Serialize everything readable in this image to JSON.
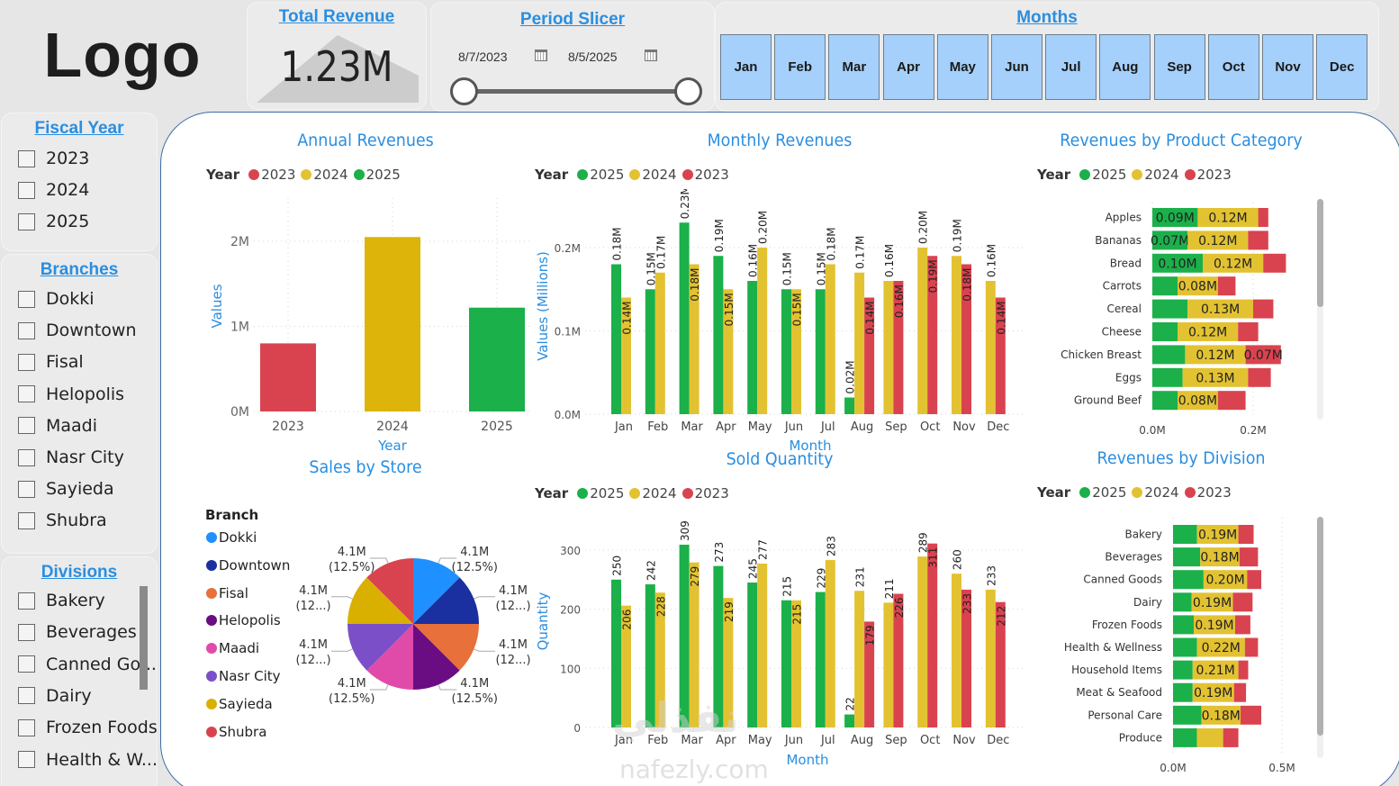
{
  "logo": {
    "text": "Logo"
  },
  "kpi": {
    "title": "Total Revenue",
    "value": "1.23M"
  },
  "period_slicer": {
    "title": "Period Slicer",
    "start_date": "8/7/2023",
    "end_date": "8/5/2025",
    "start_icon": "calendar-icon",
    "end_icon": "calendar-icon"
  },
  "months_slicer": {
    "title": "Months",
    "items": [
      "Jan",
      "Feb",
      "Mar",
      "Apr",
      "May",
      "Jun",
      "Jul",
      "Aug",
      "Sep",
      "Oct",
      "Nov",
      "Dec"
    ]
  },
  "fiscal_year_slicer": {
    "title": "Fiscal Year",
    "items": [
      "2023",
      "2024",
      "2025"
    ]
  },
  "branches_slicer": {
    "title": "Branches",
    "items": [
      "Dokki",
      "Downtown",
      "Fisal",
      "Helopolis",
      "Maadi",
      "Nasr City",
      "Sayieda",
      "Shubra"
    ]
  },
  "divisions_slicer": {
    "title": "Divisions",
    "items": [
      "Bakery",
      "Beverages",
      "Canned Go...",
      "Dairy",
      "Frozen Foods",
      "Health & W..."
    ]
  },
  "colors": {
    "y2023": "#d9434f",
    "y2024": "#dcb40a",
    "y2024_light": "#e3c232",
    "y2025": "#1bb04a",
    "title_blue": "#2a8ee0",
    "month_button": "#a5d0fb",
    "panel_border": "#3c6ea8"
  },
  "legends": {
    "year_label": "Year",
    "annual": [
      "2023",
      "2024",
      "2025"
    ],
    "standard": [
      "2025",
      "2024",
      "2023"
    ]
  },
  "watermark": {
    "latin": "nafezly.com",
    "arabic": "نفذلي"
  },
  "chart_data": [
    {
      "id": "annual_revenues",
      "type": "bar",
      "title": "Annual Revenues",
      "xlabel": "Year",
      "ylabel": "Values",
      "categories": [
        "2023",
        "2024",
        "2025"
      ],
      "values": [
        0.8,
        2.05,
        1.22
      ],
      "unit": "M",
      "yticks": [
        "0M",
        "1M",
        "2M"
      ],
      "ylim": [
        0,
        2.4
      ],
      "grid": true,
      "legend": "top-left"
    },
    {
      "id": "monthly_revenues",
      "type": "bar",
      "title": "Monthly Revenues",
      "xlabel": "Month",
      "ylabel": "Values (Millions)",
      "categories": [
        "Jan",
        "Feb",
        "Mar",
        "Apr",
        "May",
        "Jun",
        "Jul",
        "Aug",
        "Sep",
        "Oct",
        "Nov",
        "Dec"
      ],
      "series": [
        {
          "name": "2025",
          "values": [
            0.18,
            0.15,
            0.23,
            0.19,
            0.16,
            0.15,
            0.15,
            0.02,
            null,
            null,
            null,
            null
          ],
          "labels": [
            "0.18M",
            "0.15M",
            "0.23M",
            "0.19M",
            "0.16M",
            "0.15M",
            "0.15M",
            "0.02M",
            null,
            null,
            null,
            null
          ]
        },
        {
          "name": "2024",
          "values": [
            0.14,
            0.17,
            0.18,
            0.15,
            0.2,
            0.15,
            0.18,
            0.17,
            0.16,
            0.2,
            0.19,
            0.16
          ],
          "labels": [
            "0.14M",
            "0.17M",
            "0.18M",
            "0.15M",
            "0.20M",
            "0.15M",
            "0.18M",
            "0.17M",
            "0.16M",
            "0.20M",
            "0.19M",
            "0.16M"
          ]
        },
        {
          "name": "2023",
          "values": [
            null,
            null,
            null,
            null,
            null,
            null,
            null,
            0.14,
            0.16,
            0.19,
            0.18,
            0.14
          ],
          "labels": [
            null,
            null,
            null,
            null,
            null,
            null,
            null,
            "0.14M",
            "0.16M",
            "0.19M",
            "0.18M",
            "0.14M"
          ]
        }
      ],
      "yticks": [
        "0.0M",
        "0.1M",
        "0.2M"
      ],
      "ylim": [
        0,
        0.25
      ],
      "grid": true,
      "legend": "top-left"
    },
    {
      "id": "revenues_by_product_category",
      "type": "bar",
      "orientation": "horizontal-stacked",
      "title": "Revenues by Product Category",
      "categories": [
        "Apples",
        "Bananas",
        "Bread",
        "Carrots",
        "Cereal",
        "Cheese",
        "Chicken Breast",
        "Eggs",
        "Ground Beef"
      ],
      "series": [
        {
          "name": "2025",
          "values": [
            0.09,
            0.07,
            0.1,
            0.05,
            0.07,
            0.05,
            0.065,
            0.06,
            0.05
          ],
          "labels": [
            "0.09M",
            "0.07M",
            "0.10M",
            null,
            null,
            null,
            null,
            null,
            null
          ]
        },
        {
          "name": "2024",
          "values": [
            0.12,
            0.12,
            0.12,
            0.08,
            0.13,
            0.12,
            0.12,
            0.13,
            0.08
          ],
          "labels": [
            "0.12M",
            "0.12M",
            "0.12M",
            "0.08M",
            "0.13M",
            "0.12M",
            "0.12M",
            "0.13M",
            "0.08M"
          ]
        },
        {
          "name": "2023",
          "values": [
            0.02,
            0.04,
            0.045,
            0.035,
            0.04,
            0.04,
            0.07,
            0.045,
            0.055
          ],
          "labels": [
            null,
            null,
            null,
            null,
            null,
            null,
            "0.07M",
            null,
            null
          ]
        }
      ],
      "xticks": [
        "0.0M",
        "0.2M"
      ],
      "xlim": [
        0,
        0.3
      ],
      "legend": "top-left"
    },
    {
      "id": "sales_by_store",
      "type": "pie",
      "title": "Sales by Store",
      "legend_title": "Branch",
      "categories": [
        "Dokki",
        "Downtown",
        "Fisal",
        "Helopolis",
        "Maadi",
        "Nasr City",
        "Sayieda",
        "Shubra"
      ],
      "values": [
        4.1,
        4.1,
        4.1,
        4.1,
        4.1,
        4.1,
        4.1,
        4.1
      ],
      "labels": [
        [
          "4.1M",
          "(12.5%)"
        ],
        [
          "4.1M",
          "(12...)"
        ],
        [
          "4.1M",
          "(12...)"
        ],
        [
          "4.1M",
          "(12.5%)"
        ],
        [
          "4.1M",
          "(12.5%)"
        ],
        [
          "4.1M",
          "(12...)"
        ],
        [
          "4.1M",
          "(12...)"
        ],
        [
          "4.1M",
          "(12.5%)"
        ]
      ],
      "colors": [
        "#1e90ff",
        "#1a2fa0",
        "#e8703a",
        "#6a0d83",
        "#e04aa8",
        "#7a4fc8",
        "#d9b000",
        "#d9434f"
      ],
      "legend": "left"
    },
    {
      "id": "sold_quantity",
      "type": "bar",
      "title": "Sold Quantity",
      "xlabel": "Month",
      "ylabel": "Quantity",
      "categories": [
        "Jan",
        "Feb",
        "Mar",
        "Apr",
        "May",
        "Jun",
        "Jul",
        "Aug",
        "Sep",
        "Oct",
        "Nov",
        "Dec"
      ],
      "series": [
        {
          "name": "2025",
          "values": [
            250,
            242,
            309,
            273,
            245,
            215,
            229,
            22,
            null,
            null,
            null,
            null
          ]
        },
        {
          "name": "2024",
          "values": [
            206,
            228,
            279,
            219,
            277,
            215,
            283,
            231,
            211,
            289,
            260,
            233
          ]
        },
        {
          "name": "2023",
          "values": [
            null,
            null,
            null,
            null,
            null,
            null,
            null,
            179,
            226,
            311,
            233,
            212
          ]
        }
      ],
      "yticks": [
        "0",
        "100",
        "200",
        "300"
      ],
      "ylim": [
        0,
        330
      ],
      "grid": true,
      "legend": "top-left"
    },
    {
      "id": "revenues_by_division",
      "type": "bar",
      "orientation": "horizontal-stacked",
      "title": "Revenues by Division",
      "categories": [
        "Bakery",
        "Beverages",
        "Canned Goods",
        "Dairy",
        "Frozen Foods",
        "Health & Wellness",
        "Household Items",
        "Meat & Seafood",
        "Personal Care",
        "Produce"
      ],
      "series": [
        {
          "name": "2025",
          "values": [
            0.11,
            0.125,
            0.14,
            0.085,
            0.095,
            0.11,
            0.09,
            0.09,
            0.13,
            0.11
          ],
          "labels": [
            null,
            null,
            null,
            null,
            null,
            null,
            null,
            null,
            null,
            null
          ]
        },
        {
          "name": "2024",
          "values": [
            0.19,
            0.18,
            0.2,
            0.19,
            0.19,
            0.22,
            0.21,
            0.19,
            0.18,
            0.12
          ],
          "labels": [
            "0.19M",
            "0.18M",
            "0.20M",
            "0.19M",
            "0.19M",
            "0.22M",
            "0.21M",
            "0.19M",
            "0.18M",
            null
          ]
        },
        {
          "name": "2023",
          "values": [
            0.07,
            0.085,
            0.065,
            0.09,
            0.07,
            0.06,
            0.045,
            0.055,
            0.095,
            0.07
          ],
          "labels": [
            null,
            null,
            null,
            null,
            null,
            null,
            null,
            null,
            null,
            null
          ]
        }
      ],
      "xticks": [
        "0.0M",
        "0.5M"
      ],
      "xlim": [
        0,
        0.6
      ],
      "legend": "top-left"
    }
  ]
}
